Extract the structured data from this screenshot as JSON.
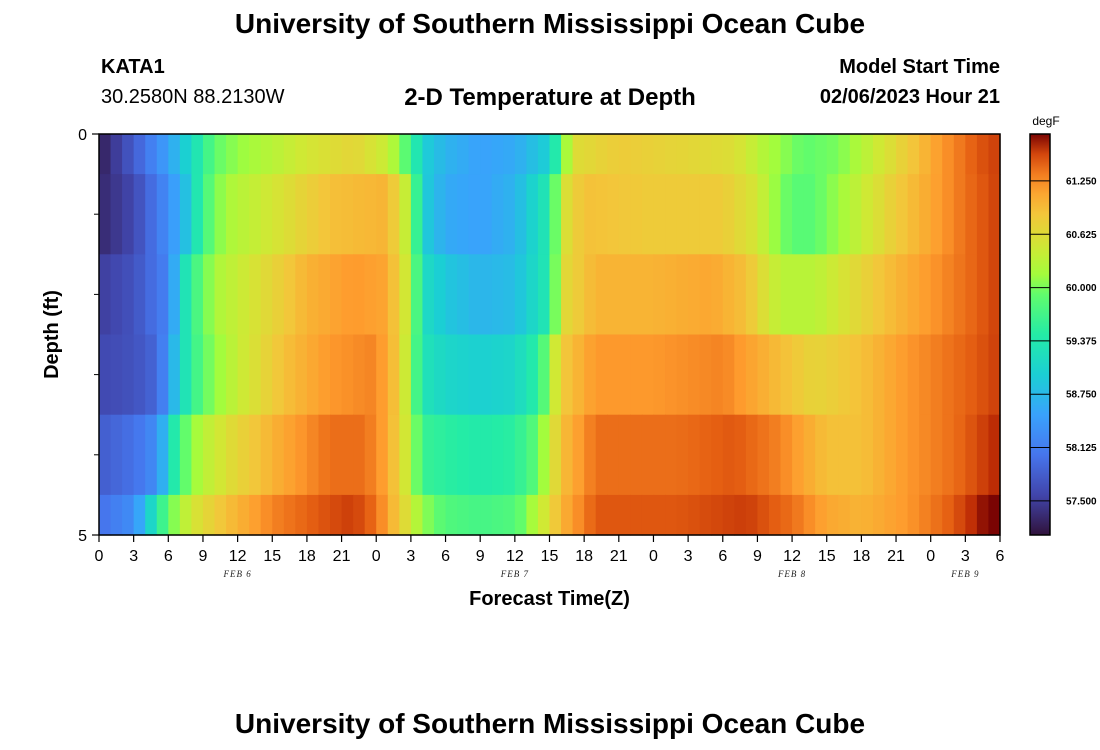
{
  "page": {
    "title": "University of Southern Mississippi Ocean Cube",
    "footer_title": "University of Southern Mississippi Ocean Cube",
    "station_id": "KATA1",
    "coordinates": "30.2580N  88.2130W",
    "subtitle": "2-D Temperature at Depth",
    "model_start_label": "Model Start Time",
    "model_start_value": "02/06/2023 Hour 21"
  },
  "chart_data": {
    "type": "heatmap",
    "title": "2-D Temperature at Depth",
    "xlabel": "Forecast Time(Z)",
    "ylabel": "Depth (ft)",
    "colorbar_label": "degF",
    "x_start_hour": 0,
    "x_end_hour": 78,
    "x_ticks": [
      {
        "hour": 0,
        "label": "0"
      },
      {
        "hour": 3,
        "label": "3"
      },
      {
        "hour": 6,
        "label": "6"
      },
      {
        "hour": 9,
        "label": "9"
      },
      {
        "hour": 12,
        "label": "12"
      },
      {
        "hour": 15,
        "label": "15"
      },
      {
        "hour": 18,
        "label": "18"
      },
      {
        "hour": 21,
        "label": "21"
      },
      {
        "hour": 24,
        "label": "0"
      },
      {
        "hour": 27,
        "label": "3"
      },
      {
        "hour": 30,
        "label": "6"
      },
      {
        "hour": 33,
        "label": "9"
      },
      {
        "hour": 36,
        "label": "12"
      },
      {
        "hour": 39,
        "label": "15"
      },
      {
        "hour": 42,
        "label": "18"
      },
      {
        "hour": 45,
        "label": "21"
      },
      {
        "hour": 48,
        "label": "0"
      },
      {
        "hour": 51,
        "label": "3"
      },
      {
        "hour": 54,
        "label": "6"
      },
      {
        "hour": 57,
        "label": "9"
      },
      {
        "hour": 60,
        "label": "12"
      },
      {
        "hour": 63,
        "label": "15"
      },
      {
        "hour": 66,
        "label": "18"
      },
      {
        "hour": 69,
        "label": "21"
      },
      {
        "hour": 72,
        "label": "0"
      },
      {
        "hour": 75,
        "label": "3"
      },
      {
        "hour": 78,
        "label": "6"
      }
    ],
    "date_labels": [
      {
        "hour": 12,
        "label": "FEB 6"
      },
      {
        "hour": 36,
        "label": "FEB 7"
      },
      {
        "hour": 60,
        "label": "FEB 8"
      },
      {
        "hour": 75,
        "label": "FEB 9"
      }
    ],
    "depth_range": [
      0,
      5
    ],
    "depth_tick_labels": [
      {
        "depth": 0,
        "label": "0"
      },
      {
        "depth": 5,
        "label": "5"
      }
    ],
    "depth_minor_ticks": [
      1,
      2,
      3,
      4
    ],
    "color_range": [
      57.1,
      61.8
    ],
    "colorbar_ticks": [
      {
        "value": 57.5,
        "label": "57.500"
      },
      {
        "value": 58.125,
        "label": "58.125"
      },
      {
        "value": 58.75,
        "label": "58.750"
      },
      {
        "value": 59.375,
        "label": "59.375"
      },
      {
        "value": 60.0,
        "label": "60.000"
      },
      {
        "value": 60.625,
        "label": "60.625"
      },
      {
        "value": 61.25,
        "label": "61.250"
      }
    ],
    "layers": [
      {
        "depth_range": [
          0,
          0.5
        ],
        "profile": [
          [
            0,
            57.2
          ],
          [
            3,
            57.8
          ],
          [
            6,
            58.5
          ],
          [
            9,
            59.5
          ],
          [
            10,
            59.9
          ],
          [
            12,
            60.1
          ],
          [
            18,
            60.5
          ],
          [
            22,
            60.7
          ],
          [
            25,
            60.4
          ],
          [
            27,
            59.7
          ],
          [
            28,
            59.0
          ],
          [
            30,
            58.7
          ],
          [
            33,
            58.5
          ],
          [
            36,
            58.6
          ],
          [
            39,
            59.0
          ],
          [
            40,
            59.8
          ],
          [
            41,
            60.6
          ],
          [
            45,
            60.8
          ],
          [
            50,
            60.7
          ],
          [
            55,
            60.6
          ],
          [
            58,
            60.2
          ],
          [
            61,
            59.9
          ],
          [
            64,
            60.0
          ],
          [
            67,
            60.4
          ],
          [
            70,
            60.8
          ],
          [
            73,
            61.2
          ],
          [
            76,
            61.5
          ],
          [
            78,
            61.6
          ]
        ]
      },
      {
        "depth_range": [
          0.5,
          1.5
        ],
        "profile": [
          [
            0,
            57.3
          ],
          [
            3,
            57.6
          ],
          [
            6,
            58.3
          ],
          [
            8,
            59.0
          ],
          [
            9,
            59.7
          ],
          [
            11,
            60.2
          ],
          [
            15,
            60.5
          ],
          [
            20,
            60.9
          ],
          [
            25,
            61.0
          ],
          [
            27,
            60.2
          ],
          [
            28,
            59.0
          ],
          [
            30,
            58.6
          ],
          [
            33,
            58.5
          ],
          [
            36,
            58.7
          ],
          [
            39,
            59.4
          ],
          [
            40,
            60.5
          ],
          [
            42,
            60.9
          ],
          [
            48,
            60.8
          ],
          [
            54,
            60.8
          ],
          [
            57,
            60.5
          ],
          [
            59,
            60.0
          ],
          [
            61,
            59.8
          ],
          [
            63,
            60.0
          ],
          [
            66,
            60.4
          ],
          [
            69,
            60.8
          ],
          [
            72,
            61.1
          ],
          [
            75,
            61.4
          ],
          [
            78,
            61.6
          ]
        ]
      },
      {
        "depth_range": [
          1.5,
          2.5
        ],
        "profile": [
          [
            0,
            57.5
          ],
          [
            3,
            57.7
          ],
          [
            6,
            58.2
          ],
          [
            7,
            59.0
          ],
          [
            8,
            59.6
          ],
          [
            10,
            60.2
          ],
          [
            14,
            60.6
          ],
          [
            18,
            61.0
          ],
          [
            22,
            61.2
          ],
          [
            25,
            61.1
          ],
          [
            27,
            60.3
          ],
          [
            28,
            59.2
          ],
          [
            30,
            58.9
          ],
          [
            33,
            58.7
          ],
          [
            36,
            58.8
          ],
          [
            39,
            59.4
          ],
          [
            40,
            60.6
          ],
          [
            43,
            61.0
          ],
          [
            48,
            61.0
          ],
          [
            53,
            61.1
          ],
          [
            56,
            60.9
          ],
          [
            59,
            60.3
          ],
          [
            62,
            60.3
          ],
          [
            65,
            60.6
          ],
          [
            68,
            60.9
          ],
          [
            72,
            61.2
          ],
          [
            75,
            61.4
          ],
          [
            78,
            61.6
          ]
        ]
      },
      {
        "depth_range": [
          2.5,
          3.5
        ],
        "profile": [
          [
            0,
            57.6
          ],
          [
            3,
            57.7
          ],
          [
            5,
            57.9
          ],
          [
            6,
            58.4
          ],
          [
            7,
            59.1
          ],
          [
            9,
            59.9
          ],
          [
            12,
            60.4
          ],
          [
            16,
            60.9
          ],
          [
            20,
            61.2
          ],
          [
            24,
            61.3
          ],
          [
            26,
            60.8
          ],
          [
            27,
            60.1
          ],
          [
            28,
            59.3
          ],
          [
            30,
            59.1
          ],
          [
            33,
            59.0
          ],
          [
            36,
            59.1
          ],
          [
            38,
            59.5
          ],
          [
            40,
            60.8
          ],
          [
            43,
            61.2
          ],
          [
            48,
            61.2
          ],
          [
            54,
            61.3
          ],
          [
            58,
            61.0
          ],
          [
            62,
            60.7
          ],
          [
            66,
            60.9
          ],
          [
            70,
            61.2
          ],
          [
            74,
            61.4
          ],
          [
            78,
            61.6
          ]
        ]
      },
      {
        "depth_range": [
          3.5,
          4.5
        ],
        "profile": [
          [
            0,
            57.8
          ],
          [
            3,
            58.0
          ],
          [
            5,
            58.3
          ],
          [
            6,
            59.0
          ],
          [
            7,
            59.8
          ],
          [
            9,
            60.3
          ],
          [
            12,
            60.7
          ],
          [
            16,
            61.1
          ],
          [
            20,
            61.4
          ],
          [
            23,
            61.4
          ],
          [
            25,
            61.1
          ],
          [
            27,
            60.3
          ],
          [
            28,
            59.6
          ],
          [
            30,
            59.5
          ],
          [
            33,
            59.4
          ],
          [
            36,
            59.5
          ],
          [
            38,
            59.9
          ],
          [
            40,
            60.9
          ],
          [
            43,
            61.4
          ],
          [
            50,
            61.4
          ],
          [
            55,
            61.5
          ],
          [
            59,
            61.3
          ],
          [
            63,
            60.9
          ],
          [
            66,
            60.9
          ],
          [
            70,
            61.2
          ],
          [
            74,
            61.4
          ],
          [
            78,
            61.7
          ]
        ]
      },
      {
        "depth_range": [
          4.5,
          5
        ],
        "profile": [
          [
            0,
            58.0
          ],
          [
            3,
            58.3
          ],
          [
            4,
            58.8
          ],
          [
            5,
            59.4
          ],
          [
            6,
            59.9
          ],
          [
            8,
            60.5
          ],
          [
            11,
            60.9
          ],
          [
            15,
            61.3
          ],
          [
            19,
            61.5
          ],
          [
            22,
            61.6
          ],
          [
            24,
            61.4
          ],
          [
            26,
            60.8
          ],
          [
            28,
            60.1
          ],
          [
            30,
            59.8
          ],
          [
            33,
            59.7
          ],
          [
            36,
            59.8
          ],
          [
            38,
            60.3
          ],
          [
            40,
            61.0
          ],
          [
            43,
            61.5
          ],
          [
            50,
            61.5
          ],
          [
            56,
            61.6
          ],
          [
            60,
            61.4
          ],
          [
            63,
            61.1
          ],
          [
            66,
            61.0
          ],
          [
            70,
            61.2
          ],
          [
            74,
            61.5
          ],
          [
            77,
            61.8
          ],
          [
            78,
            61.8
          ]
        ]
      }
    ]
  }
}
